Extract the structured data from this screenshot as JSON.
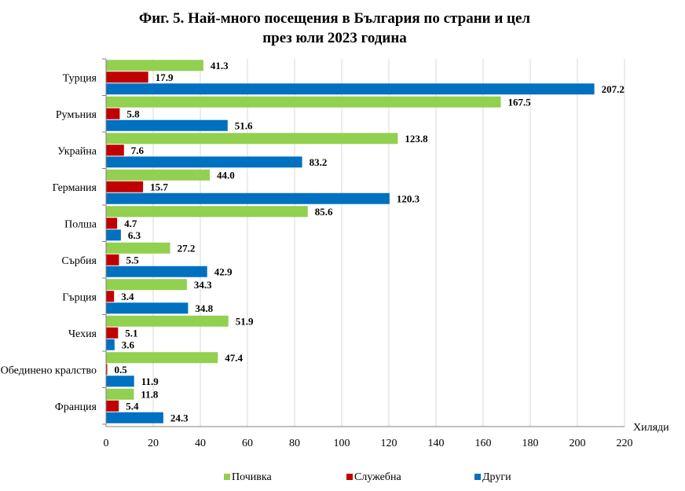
{
  "chart_data": {
    "type": "bar",
    "orientation": "horizontal",
    "title_lines": [
      "Фиг. 5. Най-много посещения в България по страни и цел",
      "през юли 2023 година"
    ],
    "xlabel": "Хиляди",
    "ylabel": "",
    "xlim": [
      0,
      220
    ],
    "x_ticks": [
      0,
      20,
      40,
      60,
      80,
      100,
      120,
      140,
      160,
      180,
      200,
      220
    ],
    "categories": [
      "Турция",
      "Румъния",
      "Украйна",
      "Германия",
      "Полша",
      "Сърбия",
      "Гърция",
      "Чехия",
      "Обединено кралство",
      "Франция"
    ],
    "series": [
      {
        "name": "Почивка",
        "color": "#92d050",
        "values": [
          41.3,
          167.5,
          123.8,
          44.0,
          85.6,
          27.2,
          34.3,
          51.9,
          47.4,
          11.8
        ],
        "labels": [
          "41.3",
          "167.5",
          "123.8",
          "44.0",
          "85.6",
          "27.2",
          "34.3",
          "51.9",
          "47.4",
          "11.8"
        ]
      },
      {
        "name": "Служебна",
        "color": "#c00000",
        "values": [
          17.9,
          5.8,
          7.6,
          15.7,
          4.7,
          5.5,
          3.4,
          5.1,
          0.5,
          5.4
        ],
        "labels": [
          "17.9",
          "5.8",
          "7.6",
          "15.7",
          "4.7",
          "5.5",
          "3.4",
          "5.1",
          "0.5",
          "5.4"
        ]
      },
      {
        "name": "Други",
        "color": "#0070c0",
        "values": [
          207.2,
          51.6,
          83.2,
          120.3,
          6.3,
          42.9,
          34.8,
          3.6,
          11.9,
          24.3
        ],
        "labels": [
          "207.2",
          "51.6",
          "83.2",
          "120.3",
          "6.3",
          "42.9",
          "34.8",
          "3.6",
          "11.9",
          "24.3"
        ]
      }
    ],
    "grid": {
      "vertical": true,
      "horizontal": false
    },
    "legend_position": "bottom"
  }
}
